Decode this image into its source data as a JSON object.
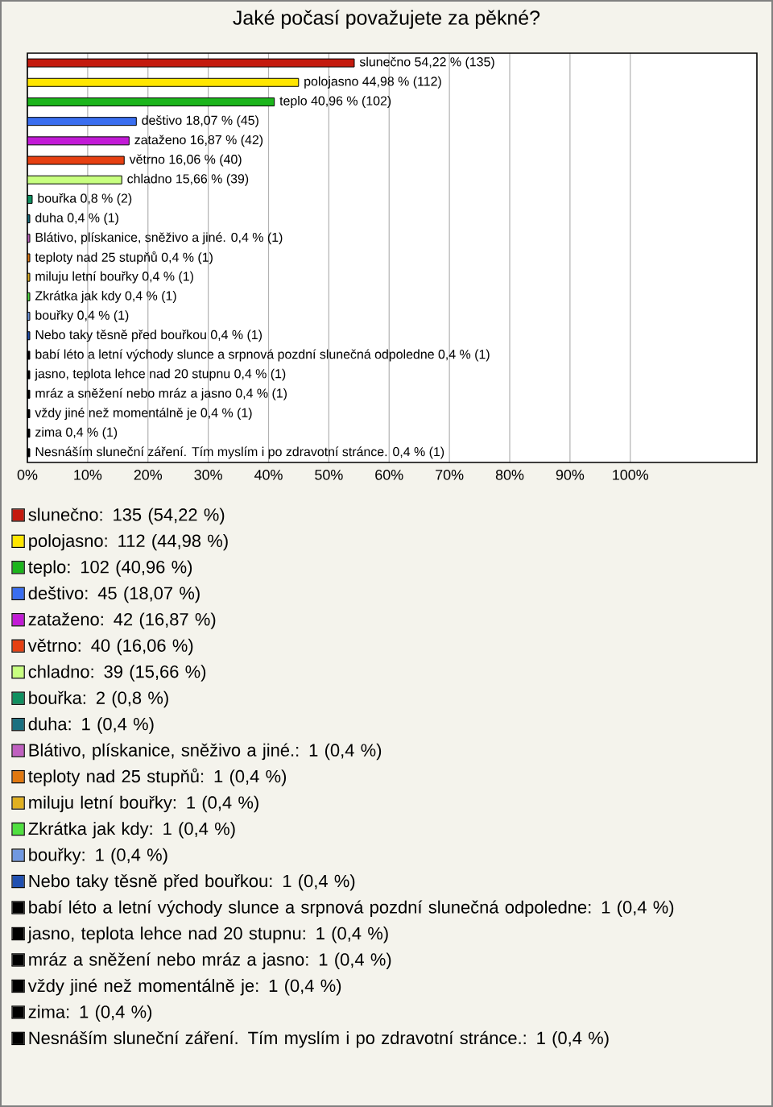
{
  "chart_data": {
    "type": "bar",
    "orientation": "horizontal",
    "title": "Jaké počasí považujete za pěkné?",
    "categories": [
      null,
      null,
      null,
      null,
      null,
      null,
      null,
      null,
      null,
      null,
      null,
      null,
      null,
      null,
      null,
      null,
      null,
      null,
      null,
      null,
      null
    ],
    "values": [
      54.22,
      44.98,
      40.96,
      18.07,
      16.87,
      16.06,
      15.66,
      0.8,
      0.4,
      0.4,
      0.4,
      0.4,
      0.4,
      0.4,
      0.4,
      0.4,
      0.4,
      0.4,
      0.4,
      0.4,
      0.4
    ],
    "colors": [
      "#c41a0e",
      "#ffe600",
      "#1cb51c",
      "#3a6ef0",
      "#c21ad6",
      "#e64012",
      "#c8ff80",
      "#109060",
      "#1a7080",
      "#c060c0",
      "#e07810",
      "#e0b020",
      "#50e040",
      "#7098e0",
      "#2050b0",
      "#000000",
      "#000000",
      "#000000",
      "#000000",
      "#000000",
      "#000000"
    ],
    "value_labels": [
      "slunečno 54,22 % (135)",
      "polojasno 44,98 % (112)",
      "teplo 40,96 % (102)",
      "deštivo 18,07 % (45)",
      "zataženo 16,87 % (42)",
      "větrno 16,06 % (40)",
      "chladno 15,66 % (39)",
      "bouřka 0,8 % (2)",
      "duha 0,4 % (1)",
      "Blátivo, plískanice, sněživo a jiné. 0,4 % (1)",
      "teploty nad 25 stupňů 0,4 % (1)",
      "miluju letní bouřky 0,4 % (1)",
      "Zkrátka jak kdy 0,4 % (1)",
      "bouřky 0,4 % (1)",
      "Nebo taky těsně před bouřkou 0,4 % (1)",
      "babí léto a letní východy slunce a srpnová pozdní slunečná odpoledne 0,4 % (1)",
      "jasno, teplota lehce nad 20 stupnu 0,4 % (1)",
      "mráz a sněžení nebo mráz a jasno 0,4 % (1)",
      "vždy jiné než momentálně je 0,4 % (1)",
      "zima 0,4 % (1)",
      "Nesnáším sluneční záření. Tím myslím i po zdravotní stránce. 0,4 % (1)"
    ],
    "xlim": [
      0,
      121
    ],
    "xticks": [
      {
        "value": 0,
        "label": "0%"
      },
      {
        "value": 10,
        "label": "10%"
      },
      {
        "value": 20,
        "label": "20%"
      },
      {
        "value": 30,
        "label": "30%"
      },
      {
        "value": 40,
        "label": "40%"
      },
      {
        "value": 50,
        "label": "50%"
      },
      {
        "value": 60,
        "label": "60%"
      },
      {
        "value": 70,
        "label": "70%"
      },
      {
        "value": 80,
        "label": "80%"
      },
      {
        "value": 90,
        "label": "90%"
      },
      {
        "value": 100,
        "label": "100%"
      }
    ],
    "grid": "x",
    "tick_labels": "x",
    "annotations": [
      "slunečno: 135 (54,22 %)",
      "polojasno: 112 (44,98 %)",
      "teplo: 102 (40,96 %)",
      "deštivo: 45 (18,07 %)",
      "zataženo: 42 (16,87 %)",
      "větrno: 40 (16,06 %)",
      "chladno: 39 (15,66 %)",
      "bouřka: 2 (0,8 %)",
      "duha: 1 (0,4 %)",
      "Blátivo, plískanice, sněživo a jiné.: 1 (0,4 %)",
      "teploty nad 25 stupňů: 1 (0,4 %)",
      "miluju letní bouřky: 1 (0,4 %)",
      "Zkrátka jak kdy: 1 (0,4 %)",
      "bouřky: 1 (0,4 %)",
      "Nebo taky těsně před bouřkou: 1 (0,4 %)",
      "babí léto a letní východy slunce a srpnová pozdní slunečná odpoledne: 1 (0,4 %)",
      "jasno, teplota lehce nad 20 stupnu: 1 (0,4 %)",
      "mráz a sněžení nebo mráz a jasno: 1 (0,4 %)",
      "vždy jiné než momentálně je: 1 (0,4 %)",
      "zima: 1 (0,4 %)",
      "Nesnáším sluneční záření. Tím myslím i po zdravotní stránce.: 1 (0,4 %)"
    ]
  }
}
